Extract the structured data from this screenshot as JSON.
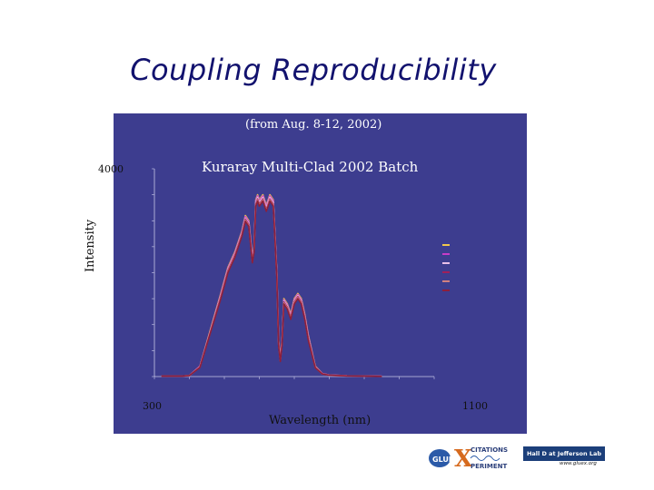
{
  "slide": {
    "title": "Coupling Reproducibility",
    "subtitle": "(from Aug. 8-12, 2002)",
    "batch_label": "Kuraray Multi-Clad 2002 Batch",
    "y_axis_label": "Intensity",
    "y_tick_label": "4000",
    "x_tick_left": "300",
    "x_tick_right": "1100",
    "x_axis_label": "Wavelength (nm)"
  },
  "logos": {
    "gluex_line1": "CITATIONS",
    "gluex_line2": "PERIMENT",
    "gluex_g": "GLUE",
    "gluex_x": "X",
    "hall_label": "Hall D at Jefferson Lab",
    "hall_url": "www.gluex.org"
  },
  "colors": {
    "frame_bg": "#3d3d8f",
    "plot_bg": "#3d3d8f",
    "series_colors": [
      "#f2c84b",
      "#c83cc8",
      "#e8c0e8",
      "#a0205a",
      "#d08080",
      "#8c1f3c"
    ]
  },
  "chart_data": {
    "type": "line",
    "xlim": [
      300,
      1100
    ],
    "ylim": [
      0,
      4000
    ],
    "yticks": [
      0,
      500,
      1000,
      1500,
      2000,
      2500,
      3000,
      3500,
      4000
    ],
    "xticks": [
      300,
      400,
      500,
      600,
      700,
      800,
      900,
      1000,
      1100
    ],
    "grid": false,
    "legend_position": "right",
    "x": [
      320,
      350,
      380,
      400,
      430,
      460,
      490,
      510,
      530,
      550,
      560,
      570,
      580,
      585,
      590,
      595,
      600,
      610,
      620,
      630,
      640,
      650,
      655,
      660,
      665,
      670,
      680,
      690,
      700,
      710,
      720,
      730,
      740,
      760,
      780,
      800,
      850,
      900,
      950
    ],
    "series": [
      {
        "values": [
          10,
          10,
          10,
          20,
          200,
          900,
          1600,
          2100,
          2400,
          2800,
          3100,
          3000,
          2300,
          2500,
          3400,
          3500,
          3400,
          3500,
          3300,
          3500,
          3400,
          2000,
          700,
          350,
          700,
          1500,
          1400,
          1200,
          1500,
          1600,
          1500,
          1200,
          800,
          200,
          60,
          30,
          15,
          10,
          5
        ]
      },
      {
        "values": [
          10,
          10,
          10,
          20,
          200,
          880,
          1580,
          2080,
          2380,
          2780,
          3080,
          2980,
          2280,
          2480,
          3380,
          3480,
          3380,
          3480,
          3280,
          3480,
          3380,
          1980,
          680,
          330,
          680,
          1480,
          1380,
          1180,
          1480,
          1580,
          1480,
          1180,
          780,
          190,
          60,
          30,
          15,
          10,
          5
        ]
      },
      {
        "values": [
          10,
          10,
          10,
          20,
          190,
          870,
          1560,
          2060,
          2360,
          2760,
          3050,
          2950,
          2250,
          2450,
          3350,
          3450,
          3350,
          3450,
          3250,
          3450,
          3350,
          1960,
          660,
          320,
          660,
          1460,
          1360,
          1160,
          1460,
          1560,
          1460,
          1160,
          760,
          185,
          55,
          28,
          14,
          10,
          5
        ]
      },
      {
        "values": [
          10,
          10,
          10,
          20,
          185,
          860,
          1540,
          2040,
          2340,
          2740,
          3030,
          2930,
          2230,
          2430,
          3320,
          3420,
          3320,
          3420,
          3220,
          3420,
          3320,
          1940,
          640,
          310,
          640,
          1440,
          1340,
          1140,
          1440,
          1540,
          1440,
          1140,
          740,
          180,
          55,
          28,
          14,
          10,
          5
        ]
      },
      {
        "values": [
          10,
          10,
          10,
          20,
          180,
          850,
          1520,
          2020,
          2320,
          2720,
          3010,
          2910,
          2210,
          2410,
          3300,
          3400,
          3300,
          3400,
          3200,
          3400,
          3300,
          1920,
          620,
          300,
          620,
          1420,
          1320,
          1120,
          1420,
          1520,
          1420,
          1120,
          720,
          175,
          50,
          25,
          12,
          8,
          4
        ]
      },
      {
        "values": [
          10,
          10,
          10,
          20,
          175,
          840,
          1500,
          2000,
          2300,
          2700,
          2990,
          2890,
          2190,
          2390,
          3280,
          3380,
          3280,
          3380,
          3180,
          3380,
          3280,
          1900,
          600,
          290,
          600,
          1400,
          1300,
          1100,
          1400,
          1500,
          1400,
          1100,
          700,
          170,
          50,
          25,
          12,
          8,
          4
        ]
      }
    ]
  }
}
